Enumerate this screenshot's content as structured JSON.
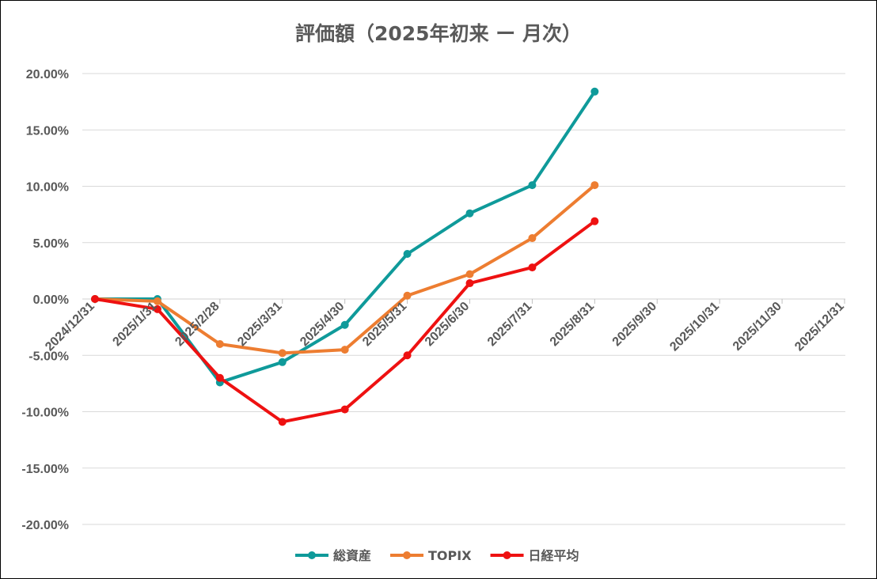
{
  "chart_data": {
    "type": "line",
    "title": "評価額（2025年初来 ー 月次）",
    "xlabel": "",
    "ylabel": "",
    "categories": [
      "2024/12/31",
      "2025/1/31",
      "2025/2/28",
      "2025/3/31",
      "2025/4/30",
      "2025/5/31",
      "2025/6/30",
      "2025/7/31",
      "2025/8/31",
      "2025/9/30",
      "2025/10/31",
      "2025/11/30",
      "2025/12/31"
    ],
    "ylim": [
      -20,
      20
    ],
    "yticks": [
      20,
      15,
      10,
      5,
      0,
      -5,
      -10,
      -15,
      -20
    ],
    "ytick_labels": [
      "20.00%",
      "15.00%",
      "10.00%",
      "5.00%",
      "0.00%",
      "-5.00%",
      "-10.00%",
      "-15.00%",
      "-20.00%"
    ],
    "grid": true,
    "legend_position": "bottom",
    "series": [
      {
        "name": "総資産",
        "color": "#0f9a9a",
        "values": [
          0.0,
          0.0,
          -7.4,
          -5.6,
          -2.3,
          4.0,
          7.6,
          10.1,
          18.4,
          null,
          null,
          null,
          null
        ]
      },
      {
        "name": "TOPIX",
        "color": "#ed7d31",
        "values": [
          0.0,
          -0.2,
          -4.0,
          -4.8,
          -4.5,
          0.3,
          2.2,
          5.4,
          10.1,
          null,
          null,
          null,
          null
        ]
      },
      {
        "name": "日経平均",
        "color": "#ee1111",
        "values": [
          0.0,
          -0.9,
          -7.0,
          -10.9,
          -9.8,
          -5.0,
          1.4,
          2.8,
          6.9,
          null,
          null,
          null,
          null
        ]
      }
    ]
  }
}
